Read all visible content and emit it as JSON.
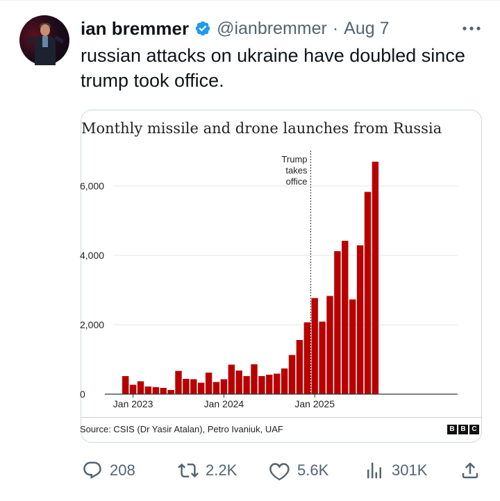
{
  "tweet": {
    "author_name": "ian bremmer",
    "handle": "@ianbremmer",
    "separator": "·",
    "date": "Aug 7",
    "text": "russian attacks on ukraine have doubled since trump took office.",
    "verified_color": "#1d9bf0"
  },
  "media": {
    "source": "Source: CSIS (Dr Yasir Atalan), Petro Ivaniuk, UAF",
    "logo_letters": [
      "B",
      "B",
      "C"
    ]
  },
  "chart_data": {
    "type": "bar",
    "title": "Monthly missile and drone launches from Russia",
    "xlabel": "",
    "ylabel": "",
    "ylim": [
      0,
      7000
    ],
    "yticks": [
      0,
      2000,
      4000,
      6000
    ],
    "ytick_labels": [
      "0",
      "2,000",
      "4,000",
      "6,000"
    ],
    "bar_color": "#b80000",
    "grid": true,
    "x_tick_labels": [
      {
        "label": "Jan 2023",
        "month_index": 1
      },
      {
        "label": "Jan 2024",
        "month_index": 13
      },
      {
        "label": "Jan 2025",
        "month_index": 25
      }
    ],
    "annotation": {
      "lines": [
        "Trump",
        "takes",
        "office"
      ],
      "month_index": 25
    },
    "values": [
      520,
      270,
      370,
      220,
      200,
      180,
      120,
      670,
      440,
      430,
      330,
      620,
      350,
      430,
      850,
      680,
      520,
      860,
      520,
      560,
      590,
      740,
      1130,
      1560,
      2070,
      2770,
      2090,
      2830,
      4120,
      4420,
      2730,
      4290,
      5830,
      6700
    ]
  },
  "actions": {
    "replies": "208",
    "reposts": "2.2K",
    "likes": "5.6K",
    "views": "301K"
  }
}
